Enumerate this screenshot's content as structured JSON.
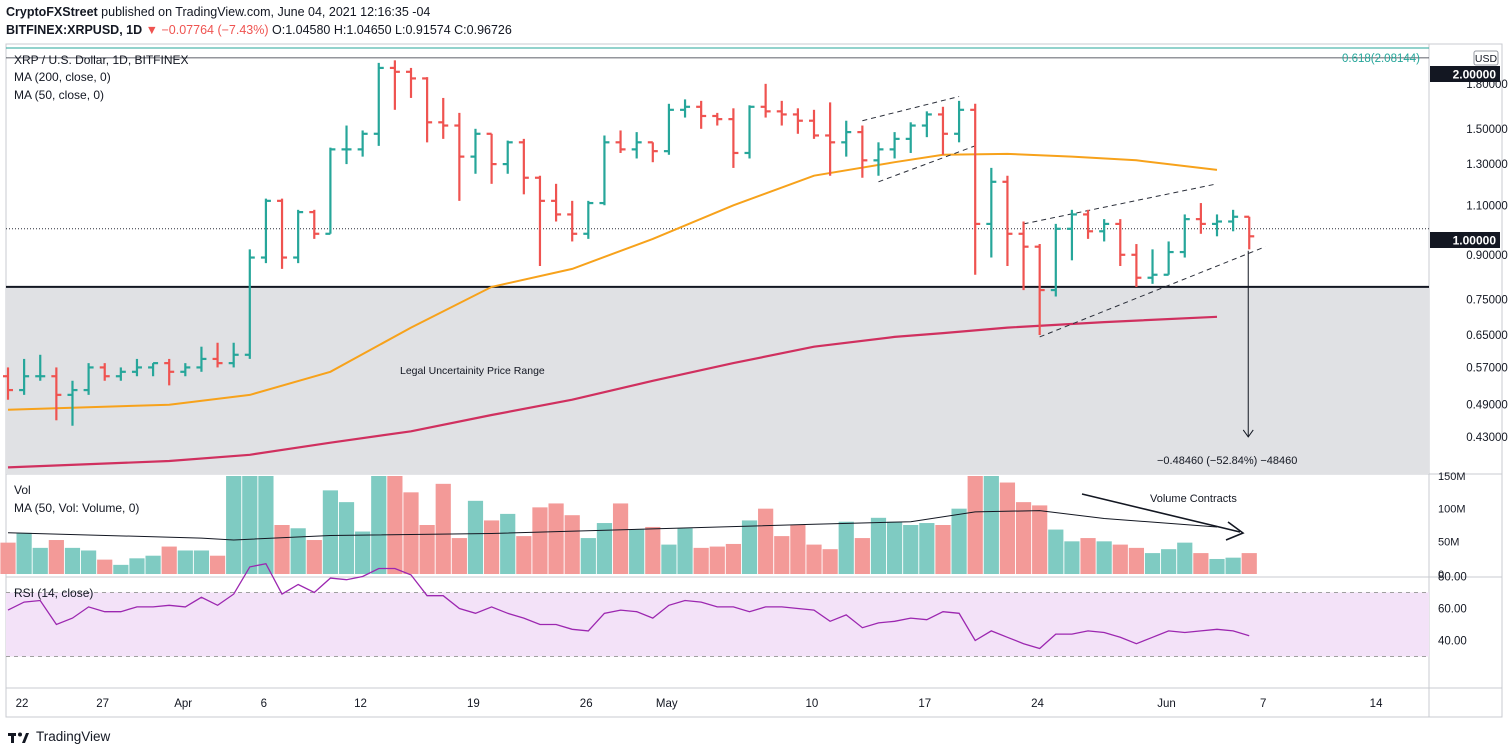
{
  "header": {
    "publisher": "CryptoFXStreet",
    "published_text": "published on TradingView.com, June 04, 2021 12:16:35 -04",
    "symbol": "BITFINEX:XRPUSD, 1D",
    "change": "−0.07764 (−7.43%)",
    "o_label": "O:",
    "o_val": "1.04580",
    "h_label": "H:",
    "h_val": "1.04650",
    "l_label": "L:",
    "l_val": "0.91574",
    "c_label": "C:",
    "c_val": "0.96726"
  },
  "legend": {
    "pair": "XRP / U.S. Dollar, 1D, BITFINEX",
    "ma200": "MA (200, close, 0)",
    "ma50": "MA (50, close, 0)",
    "vol": "Vol",
    "vol_ma": "MA (50, Vol: Volume, 0)",
    "rsi": "RSI (14, close)"
  },
  "annotations": {
    "fib": "0.618(2.08144)",
    "zone": "Legal Uncertainity  Price Range",
    "target": "−0.48460 (−52.84%) −48460",
    "volume": "Volume Contracts"
  },
  "currency": "USD",
  "brand": "TradingView",
  "colors": {
    "up": "#26a69a",
    "down": "#ef5350",
    "up_vol": "#7fcbc2",
    "down_vol": "#f39a98",
    "ma50": "#f7a21b",
    "ma200": "#d0305f",
    "rsi": "#9c27b0"
  },
  "chart_data": {
    "type": "ohlc",
    "title": "XRP / U.S. Dollar, 1D, BITFINEX",
    "price_axis": {
      "scale": "log",
      "ticks": [
        "1.80000",
        "1.50000",
        "1.30000",
        "1.10000",
        "0.90000",
        "0.75000",
        "0.65000",
        "0.57000",
        "0.49000",
        "0.43000"
      ],
      "labels_hl": [
        "2.00000",
        "1.00000"
      ],
      "ylim": [
        0.37,
        2.09
      ]
    },
    "x_ticks": [
      "22",
      "27",
      "Apr",
      "6",
      "12",
      "19",
      "26",
      "May",
      "10",
      "17",
      "24",
      "Jun",
      "7",
      "14"
    ],
    "x_tick_days": [
      0,
      5,
      10,
      15,
      21,
      28,
      35,
      40,
      49,
      56,
      63,
      71,
      77,
      84
    ],
    "candles": [
      [
        0.55,
        0.57,
        0.5,
        0.52
      ],
      [
        0.52,
        0.59,
        0.51,
        0.55
      ],
      [
        0.55,
        0.6,
        0.54,
        0.55
      ],
      [
        0.55,
        0.57,
        0.46,
        0.51
      ],
      [
        0.51,
        0.54,
        0.45,
        0.52
      ],
      [
        0.52,
        0.58,
        0.51,
        0.57
      ],
      [
        0.57,
        0.58,
        0.54,
        0.55
      ],
      [
        0.55,
        0.57,
        0.54,
        0.56
      ],
      [
        0.56,
        0.59,
        0.55,
        0.57
      ],
      [
        0.57,
        0.58,
        0.55,
        0.58
      ],
      [
        0.58,
        0.59,
        0.53,
        0.56
      ],
      [
        0.56,
        0.58,
        0.55,
        0.57
      ],
      [
        0.57,
        0.62,
        0.56,
        0.59
      ],
      [
        0.59,
        0.63,
        0.57,
        0.58
      ],
      [
        0.58,
        0.63,
        0.57,
        0.6
      ],
      [
        0.6,
        0.92,
        0.59,
        0.89
      ],
      [
        0.89,
        1.13,
        0.87,
        1.12
      ],
      [
        1.12,
        1.13,
        0.85,
        0.89
      ],
      [
        0.89,
        1.08,
        0.87,
        1.07
      ],
      [
        1.07,
        1.08,
        0.96,
        0.98
      ],
      [
        0.98,
        1.39,
        0.98,
        1.38
      ],
      [
        1.38,
        1.52,
        1.3,
        1.38
      ],
      [
        1.38,
        1.49,
        1.34,
        1.47
      ],
      [
        1.47,
        1.96,
        1.4,
        1.92
      ],
      [
        1.92,
        1.98,
        1.62,
        1.89
      ],
      [
        1.89,
        1.92,
        1.7,
        1.84
      ],
      [
        1.84,
        1.85,
        1.42,
        1.54
      ],
      [
        1.54,
        1.7,
        1.44,
        1.52
      ],
      [
        1.52,
        1.6,
        1.12,
        1.34
      ],
      [
        1.34,
        1.5,
        1.25,
        1.47
      ],
      [
        1.47,
        1.47,
        1.2,
        1.3
      ],
      [
        1.3,
        1.43,
        1.25,
        1.42
      ],
      [
        1.42,
        1.44,
        1.15,
        1.23
      ],
      [
        1.23,
        1.24,
        0.86,
        1.12
      ],
      [
        1.12,
        1.2,
        1.03,
        1.06
      ],
      [
        1.06,
        1.12,
        0.95,
        0.98
      ],
      [
        0.98,
        1.12,
        0.96,
        1.11
      ],
      [
        1.11,
        1.46,
        1.1,
        1.42
      ],
      [
        1.42,
        1.49,
        1.36,
        1.38
      ],
      [
        1.38,
        1.48,
        1.33,
        1.42
      ],
      [
        1.42,
        1.42,
        1.31,
        1.37
      ],
      [
        1.37,
        1.66,
        1.35,
        1.62
      ],
      [
        1.62,
        1.69,
        1.57,
        1.64
      ],
      [
        1.64,
        1.68,
        1.5,
        1.58
      ],
      [
        1.58,
        1.6,
        1.52,
        1.56
      ],
      [
        1.56,
        1.63,
        1.28,
        1.36
      ],
      [
        1.36,
        1.65,
        1.33,
        1.64
      ],
      [
        1.64,
        1.8,
        1.57,
        1.61
      ],
      [
        1.61,
        1.68,
        1.52,
        1.59
      ],
      [
        1.59,
        1.63,
        1.47,
        1.55
      ],
      [
        1.55,
        1.62,
        1.44,
        1.46
      ],
      [
        1.46,
        1.67,
        1.24,
        1.42
      ],
      [
        1.42,
        1.55,
        1.34,
        1.48
      ],
      [
        1.48,
        1.52,
        1.23,
        1.32
      ],
      [
        1.32,
        1.42,
        1.24,
        1.38
      ],
      [
        1.38,
        1.48,
        1.33,
        1.44
      ],
      [
        1.44,
        1.54,
        1.36,
        1.52
      ],
      [
        1.52,
        1.61,
        1.45,
        1.59
      ],
      [
        1.59,
        1.64,
        1.35,
        1.47
      ],
      [
        1.47,
        1.68,
        1.42,
        1.62
      ],
      [
        1.62,
        1.66,
        0.83,
        1.02
      ],
      [
        1.02,
        1.28,
        0.89,
        1.21
      ],
      [
        1.21,
        1.24,
        0.86,
        0.98
      ],
      [
        0.98,
        1.03,
        0.78,
        0.93
      ],
      [
        0.93,
        0.94,
        0.65,
        0.78
      ],
      [
        0.78,
        1.02,
        0.76,
        1.0
      ],
      [
        1.0,
        1.08,
        0.88,
        1.06
      ],
      [
        1.06,
        1.08,
        0.96,
        0.99
      ],
      [
        0.99,
        1.04,
        0.95,
        1.02
      ],
      [
        1.02,
        1.04,
        0.86,
        0.9
      ],
      [
        0.9,
        0.94,
        0.79,
        0.82
      ],
      [
        0.82,
        0.92,
        0.8,
        0.83
      ],
      [
        0.83,
        0.95,
        0.83,
        0.91
      ],
      [
        0.91,
        1.06,
        0.89,
        1.04
      ],
      [
        1.04,
        1.11,
        0.98,
        1.02
      ],
      [
        1.02,
        1.06,
        0.97,
        1.03
      ],
      [
        1.03,
        1.08,
        0.99,
        1.05
      ],
      [
        1.05,
        1.05,
        0.92,
        0.97
      ]
    ],
    "ma50": [
      [
        0,
        0.48
      ],
      [
        10,
        0.49
      ],
      [
        15,
        0.51
      ],
      [
        20,
        0.56
      ],
      [
        25,
        0.67
      ],
      [
        30,
        0.79
      ],
      [
        35,
        0.85
      ],
      [
        40,
        0.96
      ],
      [
        45,
        1.1
      ],
      [
        50,
        1.24
      ],
      [
        55,
        1.31
      ],
      [
        58,
        1.35
      ],
      [
        62,
        1.355
      ],
      [
        66,
        1.34
      ],
      [
        70,
        1.32
      ],
      [
        75,
        1.27
      ]
    ],
    "ma200": [
      [
        0,
        0.38
      ],
      [
        10,
        0.39
      ],
      [
        15,
        0.4
      ],
      [
        20,
        0.42
      ],
      [
        25,
        0.44
      ],
      [
        30,
        0.47
      ],
      [
        35,
        0.5
      ],
      [
        40,
        0.54
      ],
      [
        45,
        0.58
      ],
      [
        50,
        0.62
      ],
      [
        55,
        0.645
      ],
      [
        58,
        0.655
      ],
      [
        62,
        0.67
      ],
      [
        68,
        0.685
      ],
      [
        75,
        0.7
      ]
    ],
    "volume": [
      48,
      63,
      40,
      52,
      40,
      36,
      22,
      14,
      24,
      28,
      42,
      36,
      36,
      28,
      176,
      172,
      162,
      75,
      70,
      52,
      128,
      110,
      65,
      250,
      185,
      125,
      75,
      138,
      55,
      112,
      82,
      92,
      58,
      102,
      108,
      90,
      55,
      78,
      108,
      68,
      72,
      45,
      70,
      40,
      42,
      46,
      82,
      100,
      58,
      75,
      45,
      38,
      80,
      55,
      86,
      80,
      75,
      78,
      75,
      100,
      210,
      165,
      140,
      110,
      105,
      68,
      50,
      55,
      50,
      45,
      40,
      32,
      38,
      48,
      32,
      23,
      25,
      32
    ],
    "vol_ma": [
      [
        0,
        63
      ],
      [
        12,
        55
      ],
      [
        14,
        52
      ],
      [
        20,
        59
      ],
      [
        30,
        62
      ],
      [
        40,
        69
      ],
      [
        50,
        76
      ],
      [
        56,
        80
      ],
      [
        60,
        95
      ],
      [
        64,
        97
      ],
      [
        68,
        85
      ],
      [
        75,
        72
      ]
    ],
    "rsi": [
      59,
      64,
      65,
      50,
      54,
      61,
      58,
      58,
      61,
      61,
      62,
      61,
      67,
      62,
      69,
      86,
      88,
      69,
      75,
      70,
      79,
      78,
      80,
      85,
      85,
      81,
      68,
      68,
      60,
      57,
      61,
      57,
      54,
      50,
      50,
      47,
      46,
      57,
      59,
      58,
      54,
      62,
      65,
      64,
      61,
      61,
      58,
      61,
      61,
      60,
      59,
      52,
      56,
      48,
      51,
      52,
      54,
      53,
      58,
      57,
      40,
      46,
      42,
      38,
      35,
      44,
      44,
      46,
      45,
      42,
      38,
      42,
      46,
      45,
      46,
      47,
      46,
      43
    ],
    "rsi_axis": {
      "ticks": [
        "80.00",
        "60.00",
        "40.00"
      ],
      "bands": [
        70,
        30
      ]
    },
    "vol_axis": {
      "ticks": [
        "150M",
        "100M",
        "50M",
        "0"
      ]
    },
    "horizontal_levels": {
      "fib_0618": 2.08144,
      "support": 0.79,
      "one_dollar": 1.0
    },
    "measured_move": {
      "from": 0.915,
      "to": 0.43,
      "change": -0.4846
    }
  }
}
